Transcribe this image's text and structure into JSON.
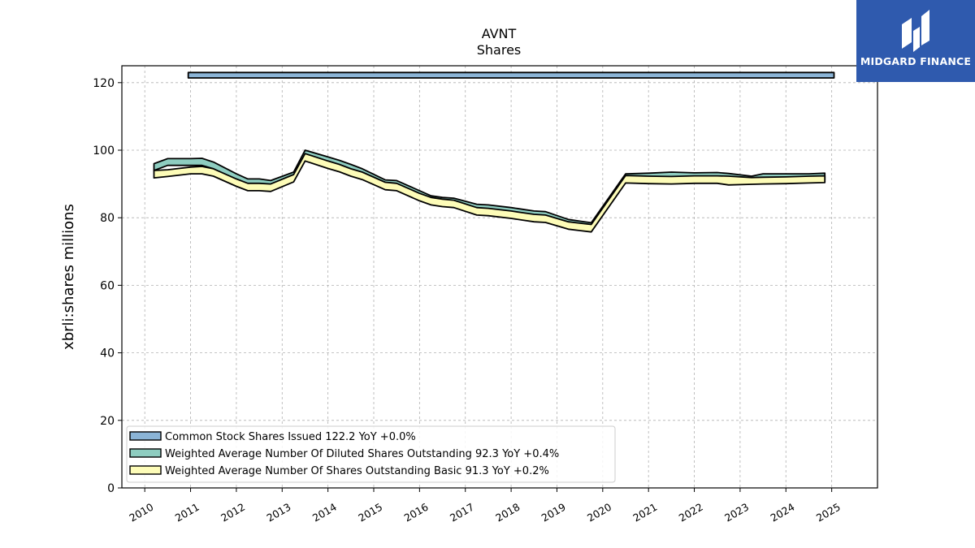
{
  "chart_data": {
    "type": "area",
    "title": "AVNT",
    "subtitle": "Shares",
    "ylabel": "xbrli:shares millions",
    "xlabel": "",
    "ylim": [
      0,
      125
    ],
    "xlim": [
      2009.5,
      2026.0
    ],
    "yticks": [
      0,
      20,
      40,
      60,
      80,
      100,
      120
    ],
    "xticks": [
      "2010",
      "2011",
      "2012",
      "2013",
      "2014",
      "2015",
      "2016",
      "2017",
      "2018",
      "2019",
      "2020",
      "2021",
      "2022",
      "2023",
      "2024",
      "2025"
    ],
    "grid": true,
    "legend_position": "lower-left",
    "series": [
      {
        "name": "Common Stock Shares Issued  122.2 YoY +0.0%",
        "color": "#8bb4d6",
        "x": [
          2010.95,
          2025.05
        ],
        "upper": [
          123.0,
          123.0
        ],
        "lower": [
          121.4,
          121.4
        ]
      },
      {
        "name": "Weighted Average Number Of Diluted Shares Outstanding  92.3 YoY +0.4%",
        "color": "#8ecdc0",
        "x": [
          2010.2,
          2010.5,
          2011.0,
          2011.25,
          2011.5,
          2012.0,
          2012.25,
          2012.5,
          2012.75,
          2013.25,
          2013.5,
          2014.0,
          2014.25,
          2014.5,
          2014.75,
          2015.25,
          2015.5,
          2016.0,
          2016.25,
          2016.5,
          2016.75,
          2017.25,
          2017.5,
          2018.0,
          2018.25,
          2018.5,
          2018.75,
          2019.25,
          2019.5,
          2019.75,
          2020.5,
          2021.0,
          2021.5,
          2022.0,
          2022.5,
          2022.75,
          2023.25,
          2023.5,
          2024.0,
          2024.5,
          2024.85
        ],
        "upper": [
          96.0,
          97.5,
          97.5,
          97.6,
          96.5,
          93.0,
          91.5,
          91.5,
          91.0,
          93.5,
          100.0,
          98.0,
          97.0,
          95.8,
          94.5,
          91.2,
          91.0,
          88.0,
          86.5,
          86.0,
          85.8,
          84.0,
          83.8,
          83.0,
          82.5,
          82.0,
          81.8,
          79.5,
          79.0,
          78.5,
          93.0,
          93.2,
          93.5,
          93.3,
          93.4,
          93.1,
          92.3,
          93.0,
          93.0,
          93.0,
          93.2
        ],
        "lower": [
          94.0,
          95.5,
          95.5,
          95.5,
          94.5,
          91.0,
          89.5,
          89.5,
          89.0,
          91.5,
          98.0,
          96.0,
          95.0,
          93.8,
          92.5,
          89.2,
          89.0,
          86.0,
          84.5,
          84.0,
          83.8,
          82.0,
          81.8,
          81.0,
          80.5,
          80.0,
          79.8,
          77.5,
          77.0,
          76.5,
          91.0,
          91.2,
          91.5,
          91.3,
          91.4,
          91.1,
          90.3,
          91.0,
          91.0,
          91.0,
          91.2
        ]
      },
      {
        "name": "Weighted Average Number Of Shares Outstanding Basic  91.3 YoY +0.2%",
        "color": "#fdfcb8",
        "x": [
          2010.2,
          2010.5,
          2011.0,
          2011.25,
          2011.5,
          2012.0,
          2012.25,
          2012.5,
          2012.75,
          2013.25,
          2013.5,
          2014.0,
          2014.25,
          2014.5,
          2014.75,
          2015.25,
          2015.5,
          2016.0,
          2016.25,
          2016.5,
          2016.75,
          2017.25,
          2017.5,
          2018.0,
          2018.25,
          2018.5,
          2018.75,
          2019.25,
          2019.5,
          2019.75,
          2020.5,
          2021.0,
          2021.5,
          2022.0,
          2022.5,
          2022.75,
          2023.25,
          2023.5,
          2024.0,
          2024.5,
          2024.85
        ],
        "upper": [
          94.0,
          94.2,
          95.0,
          95.2,
          94.5,
          91.5,
          90.2,
          90.2,
          90.0,
          92.8,
          99.0,
          96.8,
          95.8,
          94.5,
          93.5,
          90.5,
          90.2,
          87.2,
          86.0,
          85.5,
          85.2,
          83.0,
          82.8,
          82.0,
          81.5,
          81.0,
          80.8,
          78.8,
          78.4,
          78.0,
          92.5,
          92.3,
          92.2,
          92.4,
          92.4,
          92.3,
          91.9,
          92.0,
          92.1,
          92.3,
          92.4
        ],
        "lower": [
          91.8,
          92.2,
          93.0,
          93.0,
          92.3,
          89.3,
          88.0,
          88.0,
          87.8,
          90.6,
          96.8,
          94.6,
          93.6,
          92.3,
          91.3,
          88.3,
          88.0,
          85.0,
          83.8,
          83.3,
          83.0,
          80.8,
          80.6,
          79.8,
          79.3,
          78.8,
          78.6,
          76.6,
          76.2,
          75.8,
          90.3,
          90.1,
          90.0,
          90.2,
          90.2,
          89.7,
          89.9,
          90.0,
          90.1,
          90.3,
          90.4
        ]
      }
    ]
  },
  "logo": {
    "text": "MIDGARD FINANCE",
    "icon": "midgard-logo-icon",
    "color": "#2f5aae"
  }
}
